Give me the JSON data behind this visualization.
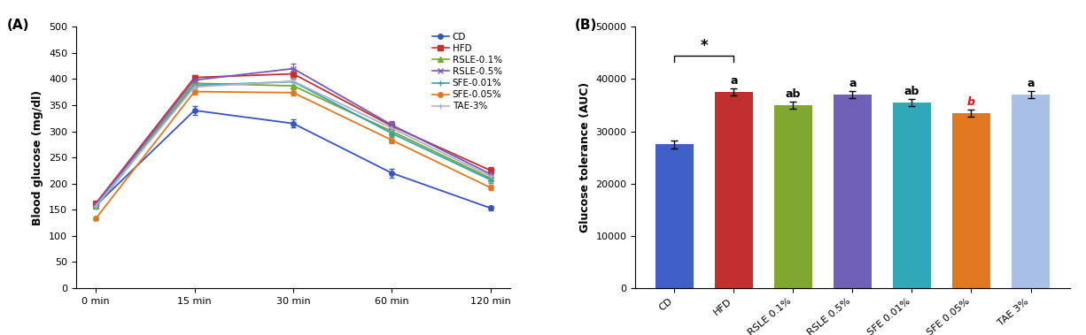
{
  "line_xticklabels": [
    "0 min",
    "15 min",
    "30 min",
    "60 min",
    "120 min"
  ],
  "line_x": [
    0,
    1,
    2,
    3,
    4
  ],
  "lines_order": [
    "CD",
    "HFD",
    "RSLE-0.1%",
    "RSLE-0.5%",
    "SFE-0.01%",
    "SFE-0.05%",
    "TAE-3%"
  ],
  "lines": {
    "CD": {
      "values": [
        158,
        340,
        315,
        220,
        153
      ],
      "errors": [
        5,
        8,
        8,
        8,
        5
      ],
      "color": "#3555c5",
      "marker": "o",
      "linestyle": "-"
    },
    "HFD": {
      "values": [
        162,
        403,
        410,
        310,
        225
      ],
      "errors": [
        4,
        5,
        10,
        8,
        7
      ],
      "color": "#c53030",
      "marker": "s",
      "linestyle": "-"
    },
    "RSLE-0.1%": {
      "values": [
        157,
        392,
        387,
        300,
        210
      ],
      "errors": [
        4,
        5,
        7,
        7,
        6
      ],
      "color": "#78a830",
      "marker": "^",
      "linestyle": "-"
    },
    "RSLE-0.5%": {
      "values": [
        160,
        398,
        420,
        312,
        218
      ],
      "errors": [
        4,
        6,
        10,
        7,
        7
      ],
      "color": "#7858b8",
      "marker": "x",
      "linestyle": "-"
    },
    "SFE-0.01%": {
      "values": [
        155,
        388,
        395,
        296,
        207
      ],
      "errors": [
        3,
        5,
        7,
        6,
        5
      ],
      "color": "#30a8a8",
      "marker": "+",
      "linestyle": "-"
    },
    "SFE-0.05%": {
      "values": [
        133,
        376,
        374,
        283,
        192
      ],
      "errors": [
        3,
        5,
        6,
        6,
        5
      ],
      "color": "#e07820",
      "marker": "o",
      "linestyle": "-"
    },
    "TAE-3%": {
      "values": [
        157,
        385,
        396,
        306,
        214
      ],
      "errors": [
        3,
        5,
        7,
        6,
        5
      ],
      "color": "#b0b0d5",
      "marker": "+",
      "linestyle": "-"
    }
  },
  "bar_categories": [
    "CD",
    "HFD",
    "RSLE 0.1%",
    "RSLE 0.5%",
    "SFE 0.01%",
    "SFE 0.05%",
    "TAE 3%"
  ],
  "bar_values": [
    27500,
    37500,
    35000,
    37000,
    35500,
    33500,
    37000
  ],
  "bar_errors": [
    800,
    700,
    700,
    700,
    650,
    650,
    650
  ],
  "bar_colors": [
    "#4060c8",
    "#c03030",
    "#80a830",
    "#7060b8",
    "#30a8b8",
    "#e07820",
    "#a8c0e8"
  ],
  "bar_labels": [
    "",
    "a",
    "ab",
    "a",
    "ab",
    "b",
    "a"
  ],
  "bar_label_colors": [
    "black",
    "black",
    "black",
    "black",
    "black",
    "red",
    "black"
  ],
  "ylabel_left": "Blood glucose (mg/dl)",
  "ylabel_right": "Glucose tolerance (AUC)",
  "ylim_left": [
    0,
    500
  ],
  "ylim_right": [
    0,
    50000
  ],
  "yticks_left": [
    0,
    50,
    100,
    150,
    200,
    250,
    300,
    350,
    400,
    450,
    500
  ],
  "yticks_right": [
    0,
    10000,
    20000,
    30000,
    40000,
    50000
  ],
  "panel_a_label": "(A)",
  "panel_b_label": "(B)",
  "significance_star": "*"
}
